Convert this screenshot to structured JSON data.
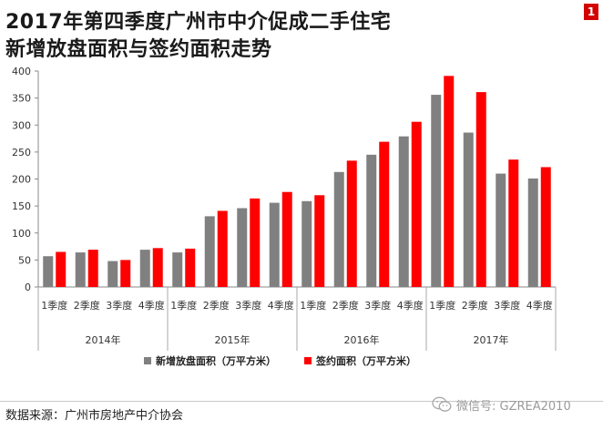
{
  "title_line1": "2017年第四季度广州市中介促成二手住宅",
  "title_line2": "新增放盘面积与签约面积走势",
  "badge": "1",
  "source": "数据来源：广州市房地产中介协会",
  "watermark": "微信号: GZREA2010",
  "colors": {
    "series1": "#808080",
    "series2": "#ff0000"
  },
  "chart_data": {
    "type": "bar",
    "categories": [
      "1季度",
      "2季度",
      "3季度",
      "4季度",
      "1季度",
      "2季度",
      "3季度",
      "4季度",
      "1季度",
      "2季度",
      "3季度",
      "4季度",
      "1季度",
      "2季度",
      "3季度",
      "4季度"
    ],
    "year_groups": [
      {
        "label": "2014年",
        "count": 4
      },
      {
        "label": "2015年",
        "count": 4
      },
      {
        "label": "2016年",
        "count": 4
      },
      {
        "label": "2017年",
        "count": 4
      }
    ],
    "series": [
      {
        "name": "新增放盘面积（万平方米）",
        "values": [
          57,
          64,
          48,
          69,
          64,
          131,
          146,
          156,
          159,
          213,
          245,
          279,
          356,
          286,
          210,
          201
        ]
      },
      {
        "name": "签约面积（万平方米）",
        "values": [
          65,
          69,
          50,
          72,
          71,
          141,
          164,
          176,
          170,
          234,
          269,
          306,
          391,
          361,
          236,
          222
        ]
      }
    ],
    "yticks": [
      0,
      50,
      100,
      150,
      200,
      250,
      300,
      350,
      400
    ],
    "ylim": [
      0,
      400
    ],
    "grid": false,
    "legend_position": "bottom"
  }
}
